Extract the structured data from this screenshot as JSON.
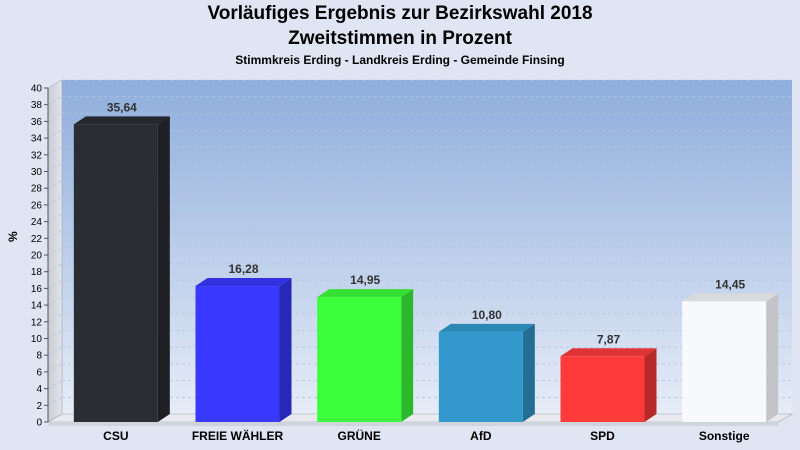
{
  "header": {
    "title_line1": "Vorläufiges Ergebnis zur Bezirkswahl 2018",
    "title_line2": "Zweitstimmen in Prozent",
    "subtitle": "Stimmkreis Erding - Landkreis Erding - Gemeinde Finsing"
  },
  "chart_data": {
    "type": "bar",
    "title": "Vorläufiges Ergebnis zur Bezirkswahl 2018 Zweitstimmen in Prozent",
    "subtitle": "Stimmkreis Erding - Landkreis Erding - Gemeinde Finsing",
    "ylabel": "%",
    "xlabel": "",
    "ylim": [
      0,
      40
    ],
    "yticks": [
      0,
      2,
      4,
      6,
      8,
      10,
      12,
      14,
      16,
      18,
      20,
      22,
      24,
      26,
      28,
      30,
      32,
      34,
      36,
      38,
      40
    ],
    "categories": [
      "CSU",
      "FREIE WÄHLER",
      "GRÜNE",
      "AfD",
      "SPD",
      "Sonstige"
    ],
    "values": [
      35.64,
      16.28,
      14.95,
      10.8,
      7.87,
      14.45
    ],
    "value_labels": [
      "35,64",
      "16,28",
      "14,95",
      "10,80",
      "7,87",
      "14,45"
    ],
    "colors": [
      "#2a2d33",
      "#3838ff",
      "#3cff3c",
      "#3399cc",
      "#ff3a3a",
      "#f8f9fc"
    ],
    "grid": true,
    "style": "3d"
  }
}
